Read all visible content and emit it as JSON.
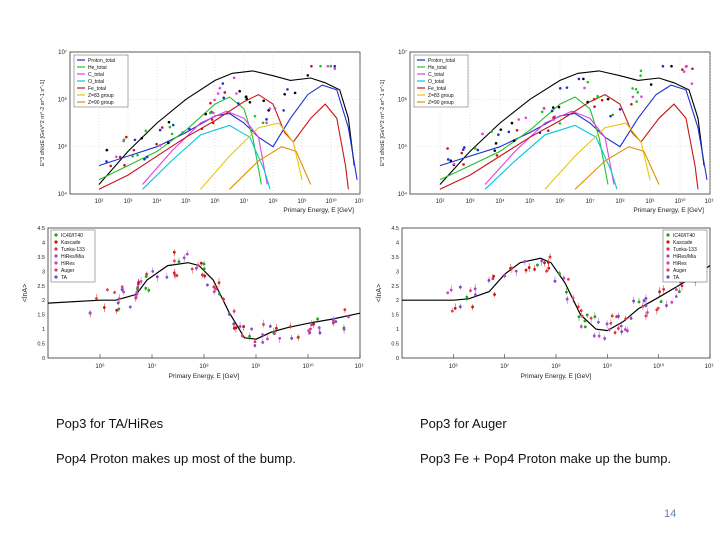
{
  "slide": {
    "captions": {
      "left_title": "Pop3 for TA/HiRes",
      "right_title": "Pop3 for Auger",
      "left_note": "Pop4 Proton makes up most of the bump.",
      "right_note": "Pop3 Fe + Pop4 Proton make up the bump."
    },
    "page_number": "14"
  },
  "chart_data": [
    {
      "type": "line",
      "panel": "top-left",
      "xlabel": "Primary Energy, E [GeV]",
      "ylabel": "E^3 dN/dE [GeV^2 m^-2 sr^-1 s^-1]",
      "xscale": "log",
      "yscale": "log",
      "xlim": [
        10,
        100000000000.0
      ],
      "ylim": [
        10000.0,
        10000000.0
      ],
      "x_ticks": [
        "10²",
        "10³",
        "10⁴",
        "10⁵",
        "10⁶",
        "10⁷",
        "10⁸",
        "10⁹",
        "10¹⁰",
        "10¹¹"
      ],
      "y_ticks": [
        "10⁷",
        "10⁶",
        "10⁵",
        "10⁴"
      ],
      "legend_position": "top-left",
      "legend": [
        "Proton_total",
        "He_total",
        "C_total",
        "O_total",
        "Fe_total",
        "Z=83 group",
        "Z=90 group"
      ],
      "series_colors": [
        "#1a2fd0",
        "#22c02a",
        "#e040e0",
        "#00c8d8",
        "#c81414",
        "#e8c800",
        "#e09000"
      ]
    },
    {
      "type": "line",
      "panel": "top-right",
      "xlabel": "Primary Energy, E [GeV]",
      "ylabel": "E^3 dN/dE [GeV^2 m^-2 sr^-1 s^-1]",
      "xscale": "log",
      "yscale": "log",
      "xlim": [
        10,
        100000000000.0
      ],
      "ylim": [
        10000.0,
        10000000.0
      ],
      "x_ticks": [
        "10²",
        "10³",
        "10⁴",
        "10⁵",
        "10⁶",
        "10⁷",
        "10⁸",
        "10⁹",
        "10¹⁰",
        "10¹¹"
      ],
      "y_ticks": [
        "10⁷",
        "10⁶",
        "10⁵",
        "10⁴"
      ],
      "legend_position": "top-left",
      "legend": [
        "Proton_total",
        "He_total",
        "C_total",
        "O_total",
        "Fe_total",
        "Z=83 group",
        "Z=90 group"
      ],
      "series_colors": [
        "#1a2fd0",
        "#22c02a",
        "#e040e0",
        "#00c8d8",
        "#c81414",
        "#e8c800",
        "#e09000"
      ]
    },
    {
      "type": "line",
      "panel": "bottom-left",
      "xlabel": "Primary Energy, E [GeV]",
      "ylabel": "<lnA>",
      "xscale": "log",
      "xlim": [
        100000.0,
        100000000000.0
      ],
      "ylim": [
        0,
        4.5
      ],
      "x_ticks": [
        "10⁶",
        "10⁷",
        "10⁸",
        "10⁹",
        "10¹⁰",
        "10¹¹"
      ],
      "y_ticks": [
        "4.5",
        "4",
        "3.5",
        "3",
        "2.5",
        "2",
        "1.5",
        "1",
        "0.5",
        "0"
      ],
      "legend_position": "top-left",
      "legend": [
        "IC40/IT40",
        "Kascade",
        "Tunka-133",
        "HiRes/Mia",
        "HiRes",
        "Auger",
        "TA"
      ],
      "model_curve": {
        "x": [
          100000.0,
          1000000.0,
          2000000.0,
          5000000.0,
          8000000.0,
          20000000.0,
          50000000.0,
          80000000.0,
          150000000.0,
          300000000.0,
          600000000.0,
          1000000000.0,
          2000000000.0,
          4000000000.0,
          10000000000.0,
          30000000000.0,
          100000000000.0
        ],
        "y": [
          1.9,
          2.0,
          2.0,
          2.2,
          2.7,
          3.2,
          3.3,
          3.2,
          2.7,
          1.6,
          0.7,
          0.65,
          0.9,
          1.05,
          1.2,
          1.35,
          1.55
        ]
      }
    },
    {
      "type": "line",
      "panel": "bottom-right",
      "xlabel": "Primary Energy, E [GeV]",
      "ylabel": "<lnA>",
      "xscale": "log",
      "xlim": [
        100000.0,
        100000000000.0
      ],
      "ylim": [
        0,
        4.5
      ],
      "x_ticks": [
        "10⁶",
        "10⁷",
        "10⁸",
        "10⁹",
        "10¹⁰",
        "10¹¹"
      ],
      "y_ticks": [
        "4.5",
        "4",
        "3.5",
        "3",
        "2.5",
        "2",
        "1.5",
        "1",
        "0.5",
        "0"
      ],
      "legend_position": "top-right",
      "legend": [
        "IC40/IT40",
        "Kascade",
        "Tunka-133",
        "HiRes/Mia",
        "HiRes",
        "Auger",
        "TA"
      ],
      "model_curve": {
        "x": [
          100000.0,
          1000000.0,
          2000000.0,
          5000000.0,
          10000000.0,
          20000000.0,
          50000000.0,
          80000000.0,
          150000000.0,
          300000000.0,
          600000000.0,
          1000000000.0,
          2000000000.0,
          4000000000.0,
          10000000000.0,
          30000000000.0,
          100000000000.0
        ],
        "y": [
          2.0,
          2.0,
          2.05,
          2.3,
          2.9,
          3.3,
          3.45,
          3.3,
          2.6,
          1.5,
          1.0,
          0.95,
          1.25,
          1.7,
          2.1,
          2.6,
          3.2
        ]
      }
    }
  ]
}
